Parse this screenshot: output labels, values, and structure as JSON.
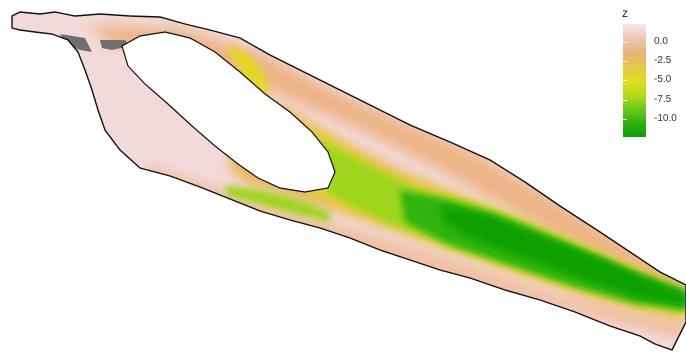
{
  "map": {
    "colors": {
      "shallow": "#f3dada",
      "light_sand": "#f0c0a2",
      "sand": "#edb588",
      "orange": "#e9b65a",
      "yellow": "#e3d923",
      "lime": "#9ed51a",
      "green": "#2fb411",
      "deep_green": "#0aa000",
      "land_gray": "#6f6f6f",
      "outline": "#111111"
    }
  },
  "legend": {
    "title": "z",
    "ticks": [
      "0.0",
      "-2.5",
      "-5.0",
      "-7.5",
      "-10.0"
    ],
    "gradient": [
      "#f6e7e4",
      "#f0c8b2",
      "#e9b47a",
      "#e6c64b",
      "#dede20",
      "#b9da1c",
      "#6ccb14",
      "#2fb311",
      "#0aa000"
    ]
  }
}
